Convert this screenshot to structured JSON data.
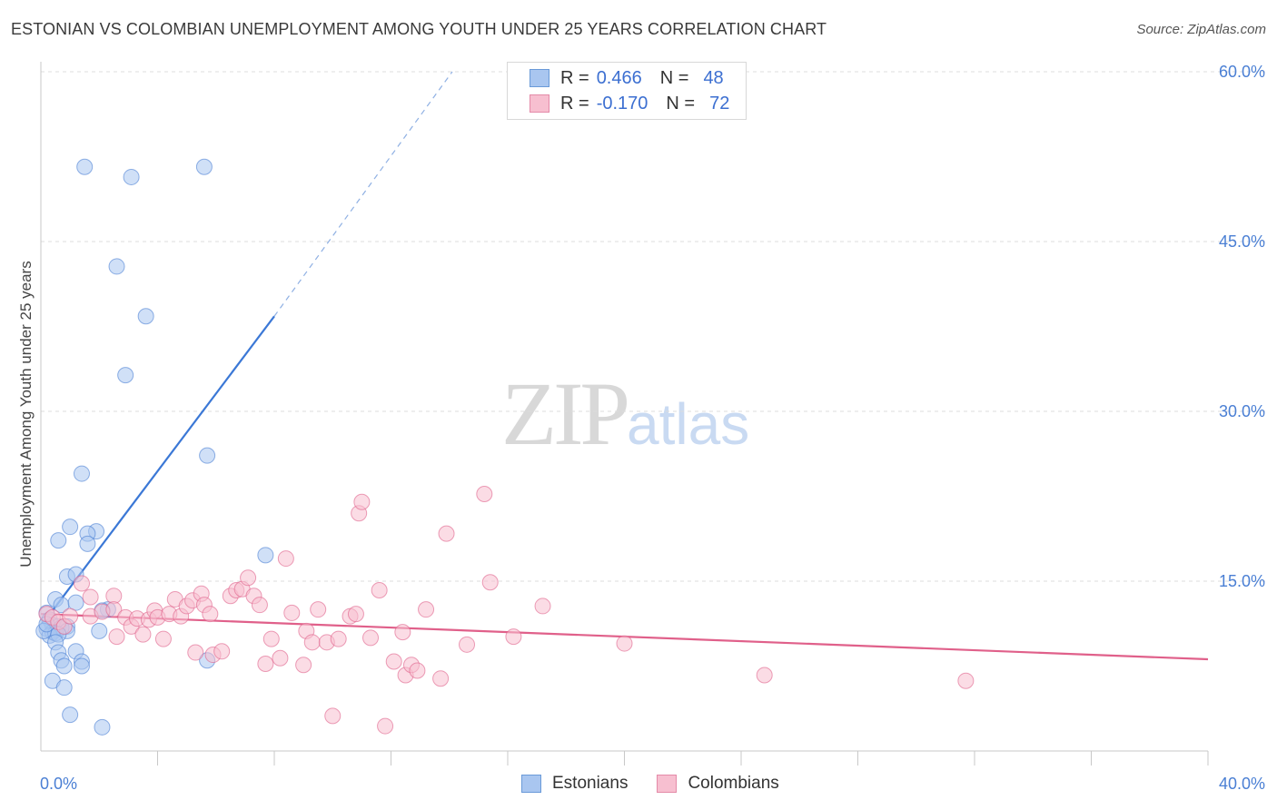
{
  "title": "ESTONIAN VS COLOMBIAN UNEMPLOYMENT AMONG YOUTH UNDER 25 YEARS CORRELATION CHART",
  "source": "Source: ZipAtlas.com",
  "watermark": {
    "zip": "ZIP",
    "atlas": "atlas"
  },
  "legend": {
    "rows": [
      {
        "r_label": "R =",
        "r_value": "0.466",
        "n_label": "N =",
        "n_value": "48",
        "color": "#a9c6f0",
        "border": "#6a9ad8"
      },
      {
        "r_label": "R =",
        "r_value": "-0.170",
        "n_label": "N =",
        "n_value": "72",
        "color": "#f7bfd0",
        "border": "#e48aa8"
      }
    ]
  },
  "bottom_legend": [
    {
      "label": "Estonians",
      "color": "#a9c6f0",
      "border": "#6a9ad8"
    },
    {
      "label": "Colombians",
      "color": "#f7bfd0",
      "border": "#e48aa8"
    }
  ],
  "chart_data": {
    "type": "scatter",
    "title": "ESTONIAN VS COLOMBIAN UNEMPLOYMENT AMONG YOUTH UNDER 25 YEARS CORRELATION CHART",
    "xlabel": "",
    "ylabel": "Unemployment Among Youth under 25 years",
    "xlim": [
      0,
      40
    ],
    "ylim": [
      0,
      60
    ],
    "x_tick_labels": [
      {
        "value": 0,
        "label": "0.0%"
      },
      {
        "value": 40,
        "label": "40.0%"
      }
    ],
    "y_tick_labels": [
      {
        "value": 15,
        "label": "15.0%"
      },
      {
        "value": 30,
        "label": "30.0%"
      },
      {
        "value": 45,
        "label": "45.0%"
      },
      {
        "value": 60,
        "label": "60.0%"
      }
    ],
    "series": [
      {
        "name": "Estonians",
        "color": "#4a7fd4",
        "fill": "#a9c6f0",
        "points": [
          [
            1.5,
            51.6
          ],
          [
            3.1,
            50.7
          ],
          [
            5.6,
            51.6
          ],
          [
            2.6,
            42.8
          ],
          [
            3.6,
            38.4
          ],
          [
            2.9,
            33.2
          ],
          [
            5.7,
            26.1
          ],
          [
            1.4,
            24.5
          ],
          [
            1.0,
            19.8
          ],
          [
            1.9,
            19.4
          ],
          [
            1.6,
            19.2
          ],
          [
            0.6,
            18.6
          ],
          [
            1.6,
            18.3
          ],
          [
            7.7,
            17.3
          ],
          [
            0.9,
            15.4
          ],
          [
            1.2,
            15.6
          ],
          [
            0.5,
            13.4
          ],
          [
            0.7,
            12.9
          ],
          [
            1.2,
            13.1
          ],
          [
            2.3,
            12.5
          ],
          [
            2.1,
            12.4
          ],
          [
            0.2,
            12.2
          ],
          [
            0.3,
            11.6
          ],
          [
            0.4,
            11.1
          ],
          [
            0.6,
            11.0
          ],
          [
            0.9,
            11.0
          ],
          [
            0.2,
            10.8
          ],
          [
            0.4,
            10.5
          ],
          [
            0.7,
            10.9
          ],
          [
            0.3,
            10.2
          ],
          [
            0.5,
            10.4
          ],
          [
            0.1,
            10.6
          ],
          [
            0.9,
            10.6
          ],
          [
            0.2,
            11.2
          ],
          [
            0.6,
            10.3
          ],
          [
            2.0,
            10.6
          ],
          [
            0.5,
            9.6
          ],
          [
            0.6,
            8.7
          ],
          [
            1.2,
            8.8
          ],
          [
            0.7,
            8.0
          ],
          [
            1.4,
            7.9
          ],
          [
            0.8,
            7.5
          ],
          [
            1.4,
            7.5
          ],
          [
            5.7,
            8.0
          ],
          [
            0.4,
            6.2
          ],
          [
            0.8,
            5.6
          ],
          [
            1.0,
            3.2
          ],
          [
            2.1,
            2.1
          ]
        ]
      },
      {
        "name": "Colombians",
        "color": "#e0608a",
        "fill": "#f7bfd0",
        "points": [
          [
            0.2,
            12.1
          ],
          [
            0.4,
            11.8
          ],
          [
            0.6,
            11.4
          ],
          [
            0.8,
            11.0
          ],
          [
            1.0,
            11.9
          ],
          [
            1.4,
            14.8
          ],
          [
            1.7,
            11.9
          ],
          [
            1.7,
            13.6
          ],
          [
            2.1,
            12.3
          ],
          [
            2.5,
            13.7
          ],
          [
            2.5,
            12.5
          ],
          [
            2.6,
            10.1
          ],
          [
            2.9,
            11.8
          ],
          [
            3.1,
            11.0
          ],
          [
            3.3,
            11.7
          ],
          [
            3.5,
            10.3
          ],
          [
            3.7,
            11.6
          ],
          [
            3.9,
            12.4
          ],
          [
            4.0,
            11.8
          ],
          [
            4.2,
            9.9
          ],
          [
            4.4,
            12.1
          ],
          [
            4.6,
            13.4
          ],
          [
            4.8,
            11.9
          ],
          [
            5.0,
            12.8
          ],
          [
            5.2,
            13.3
          ],
          [
            5.3,
            8.7
          ],
          [
            5.5,
            13.9
          ],
          [
            5.6,
            12.9
          ],
          [
            5.8,
            12.1
          ],
          [
            5.9,
            8.5
          ],
          [
            6.2,
            8.8
          ],
          [
            6.5,
            13.7
          ],
          [
            6.7,
            14.2
          ],
          [
            6.9,
            14.3
          ],
          [
            7.1,
            15.3
          ],
          [
            7.3,
            13.7
          ],
          [
            7.5,
            12.9
          ],
          [
            7.7,
            7.7
          ],
          [
            7.9,
            9.9
          ],
          [
            8.2,
            8.2
          ],
          [
            8.4,
            17.0
          ],
          [
            8.6,
            12.2
          ],
          [
            9.0,
            7.6
          ],
          [
            9.1,
            10.6
          ],
          [
            9.3,
            9.6
          ],
          [
            9.5,
            12.5
          ],
          [
            9.8,
            9.6
          ],
          [
            10.0,
            3.1
          ],
          [
            10.2,
            9.9
          ],
          [
            10.6,
            11.9
          ],
          [
            10.8,
            12.1
          ],
          [
            10.9,
            21.0
          ],
          [
            11.0,
            22.0
          ],
          [
            11.3,
            10.0
          ],
          [
            11.6,
            14.2
          ],
          [
            11.8,
            2.2
          ],
          [
            12.1,
            7.9
          ],
          [
            12.4,
            10.5
          ],
          [
            12.5,
            6.7
          ],
          [
            12.7,
            7.6
          ],
          [
            12.9,
            7.1
          ],
          [
            13.2,
            12.5
          ],
          [
            13.7,
            6.4
          ],
          [
            13.9,
            19.2
          ],
          [
            14.6,
            9.4
          ],
          [
            15.2,
            22.7
          ],
          [
            15.4,
            14.9
          ],
          [
            16.2,
            10.1
          ],
          [
            17.2,
            12.8
          ],
          [
            20.0,
            9.5
          ],
          [
            24.8,
            6.7
          ],
          [
            31.7,
            6.2
          ]
        ]
      }
    ],
    "trend_lines": [
      {
        "series": "Estonians",
        "x_start": 0.4,
        "y_start": 12.4,
        "x_solid_end": 8.0,
        "y_solid_end": 38.4,
        "x_dash_end": 14.1,
        "y_dash_end": 60.0
      },
      {
        "series": "Colombians",
        "x_start": 0.0,
        "y_start": 12.1,
        "x_end": 40.0,
        "y_end": 8.1
      }
    ]
  }
}
